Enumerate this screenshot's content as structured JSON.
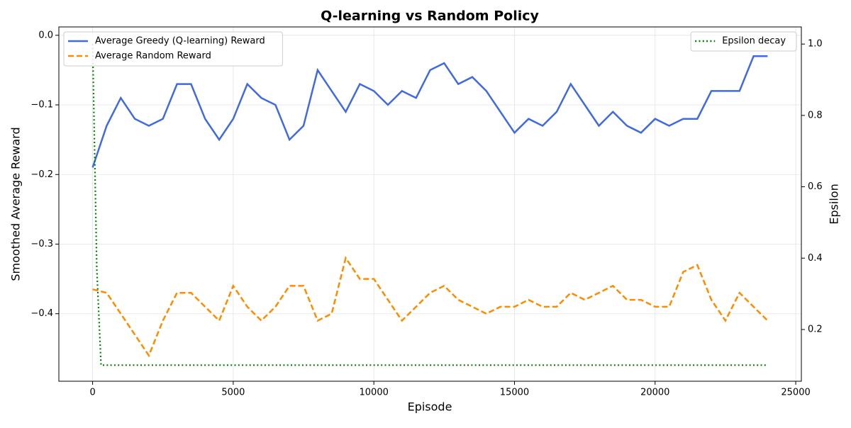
{
  "chart_data": {
    "type": "line",
    "title": "Q-learning vs Random Policy",
    "xlabel": "Episode",
    "ylabel": "Smoothed Average Reward",
    "y2label": "Epsilon",
    "x": [
      0,
      500,
      1000,
      1500,
      2000,
      2500,
      3000,
      3500,
      4000,
      4500,
      5000,
      5500,
      6000,
      6500,
      7000,
      7500,
      8000,
      8500,
      9000,
      9500,
      10000,
      10500,
      11000,
      11500,
      12000,
      12500,
      13000,
      13500,
      14000,
      14500,
      15000,
      15500,
      16000,
      16500,
      17000,
      17500,
      18000,
      18500,
      19000,
      19500,
      20000,
      20500,
      21000,
      21500,
      22000,
      22500,
      23000,
      23500,
      24000
    ],
    "series": [
      {
        "name": "Average Greedy (Q-learning) Reward",
        "color": "#4169e1",
        "style": "solid",
        "values": [
          -0.19,
          -0.13,
          -0.09,
          -0.12,
          -0.13,
          -0.12,
          -0.07,
          -0.07,
          -0.12,
          -0.15,
          -0.12,
          -0.07,
          -0.09,
          -0.1,
          -0.15,
          -0.13,
          -0.05,
          -0.08,
          -0.11,
          -0.07,
          -0.08,
          -0.1,
          -0.08,
          -0.09,
          -0.05,
          -0.04,
          -0.07,
          -0.06,
          -0.08,
          -0.11,
          -0.14,
          -0.12,
          -0.13,
          -0.11,
          -0.07,
          -0.1,
          -0.13,
          -0.11,
          -0.13,
          -0.14,
          -0.12,
          -0.13,
          -0.12,
          -0.12,
          -0.08,
          -0.08,
          -0.08,
          -0.03,
          -0.03
        ]
      },
      {
        "name": "Average Random Reward",
        "color": "#ff8c00",
        "style": "dashed",
        "values": [
          -0.365,
          -0.37,
          -0.4,
          -0.43,
          -0.46,
          -0.41,
          -0.37,
          -0.37,
          -0.39,
          -0.41,
          -0.36,
          -0.39,
          -0.41,
          -0.39,
          -0.36,
          -0.36,
          -0.41,
          -0.4,
          -0.32,
          -0.35,
          -0.35,
          -0.38,
          -0.41,
          -0.39,
          -0.37,
          -0.36,
          -0.38,
          -0.39,
          -0.4,
          -0.39,
          -0.39,
          -0.38,
          -0.39,
          -0.39,
          -0.37,
          -0.38,
          -0.37,
          -0.36,
          -0.38,
          -0.38,
          -0.39,
          -0.39,
          -0.34,
          -0.33,
          -0.38,
          -0.41,
          -0.37,
          -0.39,
          -0.41
        ]
      },
      {
        "name": "Epsilon decay",
        "color": "#008000",
        "style": "dotted",
        "axis": "y2",
        "x": [
          0,
          150,
          300,
          24000
        ],
        "values": [
          1.0,
          0.37,
          0.1,
          0.1
        ]
      }
    ],
    "xlim": [
      -1200,
      25200
    ],
    "xticks": [
      0,
      5000,
      10000,
      15000,
      20000,
      25000
    ],
    "ylim": [
      -0.497,
      0.012
    ],
    "yticks": [
      {
        "value": -0.4,
        "label": "−0.4"
      },
      {
        "value": -0.3,
        "label": "−0.3"
      },
      {
        "value": -0.2,
        "label": "−0.2"
      },
      {
        "value": -0.1,
        "label": "−0.1"
      },
      {
        "value": 0,
        "label": "0.0"
      }
    ],
    "y2lim": [
      0.055,
      1.048
    ],
    "y2ticks": [
      0.2,
      0.4,
      0.6,
      0.8,
      {
        "value": 1,
        "label": "1.0"
      }
    ],
    "grid": true,
    "legend": "upper left",
    "legend2": "upper right"
  }
}
